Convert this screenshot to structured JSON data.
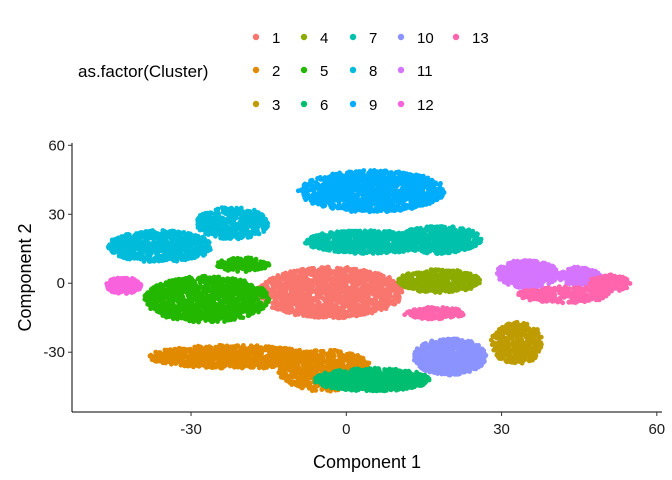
{
  "chart_data": {
    "type": "scatter",
    "title": "",
    "xlabel": "Component 1",
    "ylabel": "Component 2",
    "xlim": [
      -53,
      61
    ],
    "ylim": [
      -56,
      61
    ],
    "xticks": [
      -30,
      0,
      30,
      60
    ],
    "yticks": [
      -30,
      0,
      30,
      60
    ],
    "grid": false,
    "legend": {
      "title": "as.factor(Cluster)",
      "placement": "top"
    },
    "series": [
      {
        "name": "1",
        "color": "#F8766D",
        "clusters": [
          {
            "cx": -3,
            "cy": -4,
            "rx": 14,
            "ry": 11,
            "n": 1400
          }
        ]
      },
      {
        "name": "2",
        "color": "#E18A00",
        "clusters": [
          {
            "cx": -22,
            "cy": -32,
            "rx": 16,
            "ry": 5,
            "n": 900
          },
          {
            "cx": -4,
            "cy": -38,
            "rx": 9,
            "ry": 9,
            "n": 700
          }
        ]
      },
      {
        "name": "3",
        "color": "#BE9C00",
        "clusters": [
          {
            "cx": 33,
            "cy": -26,
            "rx": 5,
            "ry": 9,
            "n": 400
          }
        ]
      },
      {
        "name": "4",
        "color": "#8CAB00",
        "clusters": [
          {
            "cx": 18,
            "cy": 1,
            "rx": 8,
            "ry": 5,
            "n": 450
          }
        ]
      },
      {
        "name": "5",
        "color": "#24B700",
        "clusters": [
          {
            "cx": -27,
            "cy": -7,
            "rx": 12,
            "ry": 10,
            "n": 1200
          },
          {
            "cx": -20,
            "cy": 8,
            "rx": 5,
            "ry": 3,
            "n": 150
          }
        ]
      },
      {
        "name": "6",
        "color": "#00BE70",
        "clusters": [
          {
            "cx": 5,
            "cy": -42,
            "rx": 11,
            "ry": 5,
            "n": 800
          }
        ]
      },
      {
        "name": "7",
        "color": "#00C1AB",
        "clusters": [
          {
            "cx": 4,
            "cy": 18,
            "rx": 12,
            "ry": 5,
            "n": 650
          },
          {
            "cx": 18,
            "cy": 19,
            "rx": 8,
            "ry": 6,
            "n": 500
          }
        ]
      },
      {
        "name": "8",
        "color": "#00BBDA",
        "clusters": [
          {
            "cx": -36,
            "cy": 16,
            "rx": 10,
            "ry": 7,
            "n": 700
          },
          {
            "cx": -22,
            "cy": 26,
            "rx": 7,
            "ry": 7,
            "n": 450
          }
        ]
      },
      {
        "name": "9",
        "color": "#00ACFC",
        "clusters": [
          {
            "cx": 5,
            "cy": 40,
            "rx": 14,
            "ry": 9,
            "n": 1300
          }
        ]
      },
      {
        "name": "10",
        "color": "#8B93FF",
        "clusters": [
          {
            "cx": 20,
            "cy": -32,
            "rx": 7,
            "ry": 8,
            "n": 700
          }
        ]
      },
      {
        "name": "11",
        "color": "#D575FE",
        "clusters": [
          {
            "cx": 35,
            "cy": 4,
            "rx": 6,
            "ry": 6,
            "n": 500
          },
          {
            "cx": 45,
            "cy": 3,
            "rx": 4,
            "ry": 4,
            "n": 200
          }
        ]
      },
      {
        "name": "12",
        "color": "#F962DD",
        "clusters": [
          {
            "cx": -43,
            "cy": -1,
            "rx": 3.5,
            "ry": 3.5,
            "n": 180
          }
        ]
      },
      {
        "name": "13",
        "color": "#FF65AC",
        "clusters": [
          {
            "cx": 42,
            "cy": -5,
            "rx": 9,
            "ry": 3.5,
            "n": 300
          },
          {
            "cx": 51,
            "cy": 0,
            "rx": 4,
            "ry": 3.5,
            "n": 150
          },
          {
            "cx": 17,
            "cy": -13,
            "rx": 6,
            "ry": 2.5,
            "n": 150
          }
        ]
      }
    ]
  }
}
